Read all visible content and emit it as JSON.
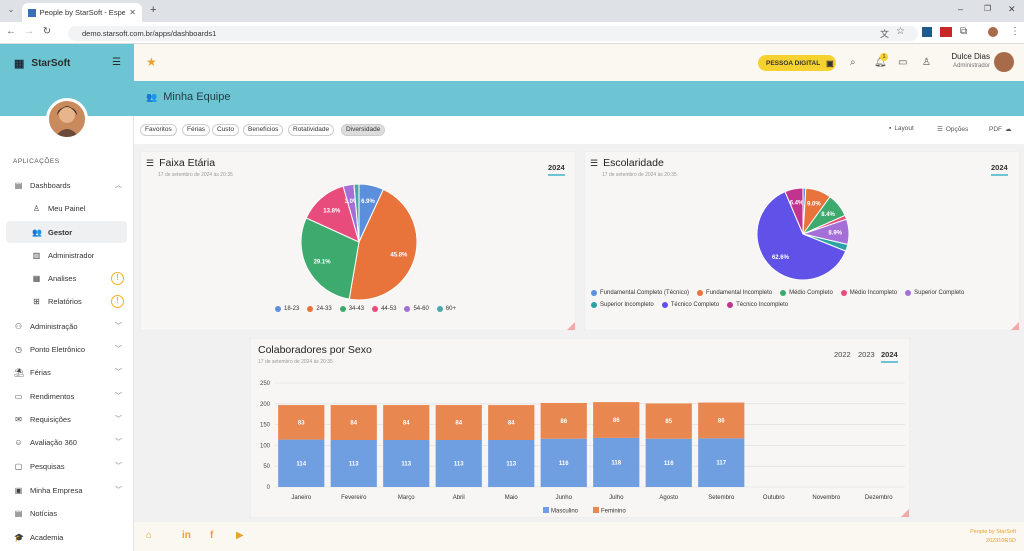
{
  "browser": {
    "tab_title": "People by StarSoft - Especializ...",
    "url": "demo.starsoft.com.br/apps/dashboards1"
  },
  "brand": {
    "name": "StarSoft"
  },
  "sidebar": {
    "section": "APLICAÇÕES",
    "items": [
      {
        "label": "Dashboards",
        "icon": "dashboard-icon"
      },
      {
        "label": "Meu Painel",
        "icon": "user-icon"
      },
      {
        "label": "Gestor",
        "icon": "users-icon"
      },
      {
        "label": "Administrador",
        "icon": "building-icon"
      },
      {
        "label": "Analises",
        "icon": "table-icon"
      },
      {
        "label": "Relatórios",
        "icon": "grid-icon"
      },
      {
        "label": "Administração",
        "icon": "admin-icon"
      },
      {
        "label": "Ponto Eletrônico",
        "icon": "clock-icon"
      },
      {
        "label": "Férias",
        "icon": "beach-icon"
      },
      {
        "label": "Rendimentos",
        "icon": "money-icon"
      },
      {
        "label": "Requisições",
        "icon": "mail-icon"
      },
      {
        "label": "Avaliação 360",
        "icon": "smile-icon"
      },
      {
        "label": "Pesquisas",
        "icon": "chat-icon"
      },
      {
        "label": "Minha Empresa",
        "icon": "briefcase-icon"
      },
      {
        "label": "Notícias",
        "icon": "news-icon"
      },
      {
        "label": "Academia",
        "icon": "graduation-icon"
      }
    ]
  },
  "header": {
    "pessoa_digital": "PESSOA DIGITAL",
    "notif_count": "1",
    "user_name": "Dulce Dias",
    "user_role": "Administrador"
  },
  "page": {
    "title": "Minha Equipe"
  },
  "filters": {
    "chips": [
      "Favoritos",
      "Férias",
      "Custo",
      "Benefícios",
      "Rotatividade",
      "Diversidade"
    ],
    "layout": "Layout",
    "options": "Opções",
    "pdf": "PDF"
  },
  "colors": {
    "accent": "#6dc5d3",
    "masculino": "#6f9fe0",
    "feminino": "#e8874f"
  },
  "chart_data": [
    {
      "type": "pie",
      "title": "Faixa Etária",
      "subtitle": "17 de setembro de 2024 às 20:35",
      "year": "2024",
      "labels": [
        "18-23",
        "24-33",
        "34-43",
        "44-53",
        "54-60",
        "60+"
      ],
      "values": [
        6.9,
        45.8,
        29.1,
        13.8,
        3.0,
        1.4
      ],
      "slice_labels": [
        "6.9%",
        "45.8%",
        "29.1%",
        "13.8%",
        "3.0%",
        ""
      ],
      "colors": [
        "#5b8fdb",
        "#e8743b",
        "#3daa6e",
        "#e84c7c",
        "#a56fd8",
        "#4aa8a8"
      ]
    },
    {
      "type": "pie",
      "title": "Escolaridade",
      "subtitle": "17 de setembro de 2024 às 20:35",
      "year": "2024",
      "labels": [
        "Fundamental Completo (Técnico)",
        "Fundamental Incompleto",
        "Médio Completo",
        "Médio Incompleto",
        "Superior Completo",
        "Superior Incompleto",
        "Técnico Completo",
        "Técnico Incompleto"
      ],
      "values": [
        1.0,
        9.0,
        8.4,
        1.4,
        8.9,
        2.4,
        62.6,
        6.4
      ],
      "slice_labels": [
        "",
        "9.0%",
        "8.4%",
        "",
        "8.9%",
        "",
        "62.6%",
        "6.4%"
      ],
      "colors": [
        "#5b8fdb",
        "#e8743b",
        "#3daa6e",
        "#e84c7c",
        "#a56fd8",
        "#2ca2a2",
        "#6052e8",
        "#c2338f"
      ]
    },
    {
      "type": "bar",
      "stacked": true,
      "title": "Colaboradores por Sexo",
      "subtitle": "17 de setembro de 2024 às 20:35",
      "years": [
        "2022",
        "2023",
        "2024"
      ],
      "selected_year": "2024",
      "categories": [
        "Janeiro",
        "Fevereiro",
        "Março",
        "Abril",
        "Maio",
        "Junho",
        "Julho",
        "Agosto",
        "Setembro",
        "Outubro",
        "Novembro",
        "Dezembro"
      ],
      "series": [
        {
          "name": "Masculino",
          "values": [
            114,
            113,
            113,
            113,
            113,
            116,
            118,
            116,
            117,
            null,
            null,
            null
          ]
        },
        {
          "name": "Feminino",
          "values": [
            83,
            84,
            84,
            84,
            84,
            86,
            86,
            85,
            86,
            null,
            null,
            null
          ]
        }
      ],
      "yticks": [
        0,
        50,
        100,
        150,
        200,
        250
      ],
      "ylim": [
        0,
        250
      ],
      "grid": true,
      "legend": "bottom"
    }
  ],
  "footer": {
    "line1": "People by StarSoft",
    "line2": "202310RSD"
  }
}
